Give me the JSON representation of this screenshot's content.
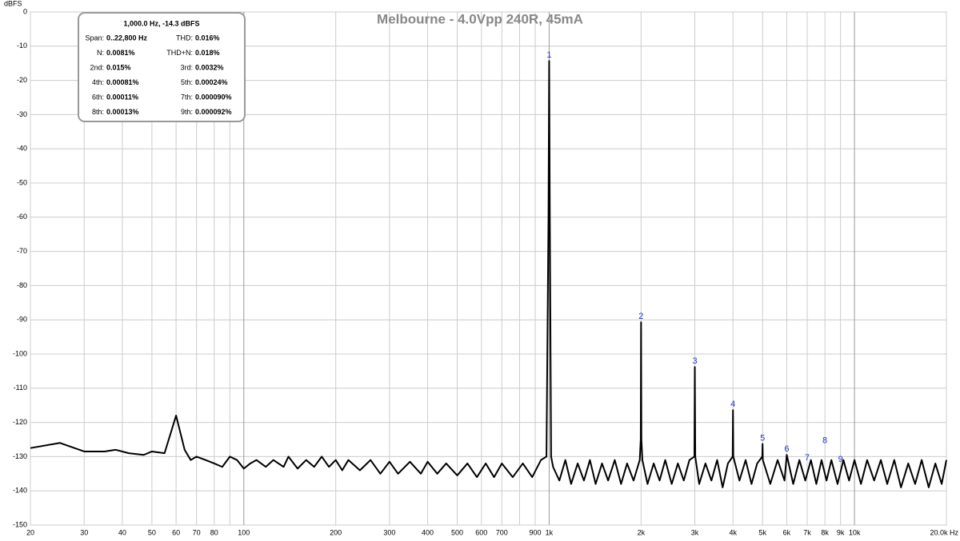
{
  "chart_data": {
    "type": "line",
    "title": "Melbourne - 4.0Vpp 240R, 45mA",
    "y_label": "dBFS",
    "log_x": true,
    "grid": true,
    "color": "#000000",
    "xlim": [
      20,
      20000
    ],
    "ylim": [
      -150,
      0
    ],
    "yticks": [
      -150,
      -140,
      -130,
      -120,
      -110,
      -100,
      -90,
      -80,
      -70,
      -60,
      -50,
      -40,
      -30,
      -20,
      -10,
      0
    ],
    "xticks": [
      20,
      30,
      40,
      50,
      60,
      70,
      80,
      100,
      200,
      300,
      400,
      500,
      600,
      700,
      900,
      {
        "value": 1000,
        "label": "1k"
      },
      {
        "value": 2000,
        "label": "2k"
      },
      {
        "value": 3000,
        "label": "3k"
      },
      {
        "value": 4000,
        "label": "4k"
      },
      {
        "value": 5000,
        "label": "5k"
      },
      {
        "value": 6000,
        "label": "6k"
      },
      {
        "value": 7000,
        "label": "7k"
      },
      {
        "value": 8000,
        "label": "8k"
      },
      {
        "value": 9000,
        "label": "9k"
      },
      {
        "value": 10000,
        "label": "10k"
      },
      {
        "value": 20000,
        "label": "20.0k Hz"
      }
    ],
    "xminor": [
      90,
      800
    ],
    "x": [
      20,
      25,
      30,
      35,
      38,
      42,
      47,
      50,
      55,
      60,
      64,
      67,
      70,
      75,
      80,
      85,
      90,
      95,
      100,
      105,
      110,
      118,
      125,
      135,
      140,
      150,
      160,
      170,
      180,
      190,
      200,
      210,
      220,
      240,
      260,
      280,
      300,
      320,
      350,
      380,
      400,
      430,
      460,
      500,
      540,
      580,
      620,
      660,
      700,
      760,
      820,
      880,
      940,
      980,
      995,
      1000,
      1005,
      1015,
      1030,
      1080,
      1130,
      1180,
      1240,
      1300,
      1360,
      1420,
      1490,
      1560,
      1640,
      1720,
      1800,
      1890,
      1980,
      1995,
      2000,
      2005,
      2020,
      2100,
      2200,
      2300,
      2400,
      2520,
      2640,
      2760,
      2880,
      2990,
      3000,
      3010,
      3100,
      3250,
      3400,
      3550,
      3700,
      3850,
      3990,
      4000,
      4010,
      4200,
      4400,
      4600,
      4800,
      4990,
      5000,
      5010,
      5300,
      5600,
      5900,
      6000,
      6300,
      6600,
      6900,
      7200,
      7500,
      7800,
      8100,
      8400,
      8800,
      9200,
      9600,
      10000,
      10500,
      11000,
      11600,
      12200,
      12800,
      13500,
      14200,
      15000,
      15800,
      16600,
      17500,
      18400,
      19300,
      20000
    ],
    "values": [
      -127.5,
      -126,
      -128.5,
      -128.5,
      -128,
      -129,
      -129.5,
      -128.5,
      -129,
      -118,
      -128,
      -131,
      -130,
      -131,
      -132,
      -133,
      -130,
      -131,
      -133.5,
      -132,
      -131,
      -133,
      -131,
      -133,
      -130,
      -133.5,
      -131,
      -133,
      -130,
      -133,
      -131,
      -134,
      -131,
      -134,
      -131,
      -135,
      -131.5,
      -135,
      -131.5,
      -135,
      -131.5,
      -135,
      -132,
      -135.5,
      -132,
      -136,
      -132,
      -136,
      -132,
      -136,
      -132,
      -136,
      -131,
      -130,
      -60,
      -14.3,
      -60,
      -130,
      -133,
      -137,
      -131,
      -138,
      -132,
      -137,
      -131,
      -138,
      -132,
      -137,
      -131,
      -138,
      -132,
      -137,
      -131,
      -125,
      -90.7,
      -125,
      -131,
      -138,
      -132,
      -137,
      -131,
      -138,
      -132,
      -137,
      -131,
      -130,
      -103.8,
      -130,
      -138,
      -132,
      -137,
      -131,
      -139,
      -132,
      -130,
      -116.4,
      -130,
      -137,
      -131,
      -138,
      -132,
      -130,
      -126.3,
      -131,
      -138,
      -131,
      -137,
      -129.5,
      -138,
      -131,
      -137,
      -131,
      -138,
      -131,
      -137,
      -131,
      -138,
      -131,
      -137,
      -131,
      -138,
      -131,
      -137,
      -131,
      -138,
      -131,
      -139,
      -132,
      -138,
      -131,
      -139,
      -132,
      -138,
      -131
    ],
    "annotations": [
      {
        "label": "1",
        "x": 1000,
        "y": -14.3
      },
      {
        "label": "2",
        "x": 2000,
        "y": -90.7
      },
      {
        "label": "3",
        "x": 3000,
        "y": -103.8
      },
      {
        "label": "4",
        "x": 4000,
        "y": -116.4
      },
      {
        "label": "5",
        "x": 5000,
        "y": -126.3
      },
      {
        "label": "6",
        "x": 6000,
        "y": -129.5
      },
      {
        "label": "7",
        "x": 7000,
        "y": -132
      },
      {
        "label": "8",
        "x": 8000,
        "y": -127
      },
      {
        "label": "9",
        "x": 9000,
        "y": -132.5
      }
    ],
    "annotation_color": "#2233cc",
    "info_box": {
      "header": "1,000.0 Hz, -14.3 dBFS",
      "rows": [
        [
          "Span:",
          "0..22,800 Hz",
          "THD:",
          "0.016%"
        ],
        [
          "N:",
          "0.0081%",
          "THD+N:",
          "0.018%"
        ],
        [
          "2nd:",
          "0.015%",
          "3rd:",
          "0.0032%"
        ],
        [
          "4th:",
          "0.00081%",
          "5th:",
          "0.00024%"
        ],
        [
          "6th:",
          "0.00011%",
          "7th:",
          "0.000090%"
        ],
        [
          "8th:",
          "0.00013%",
          "9th:",
          "0.000092%"
        ]
      ]
    }
  }
}
